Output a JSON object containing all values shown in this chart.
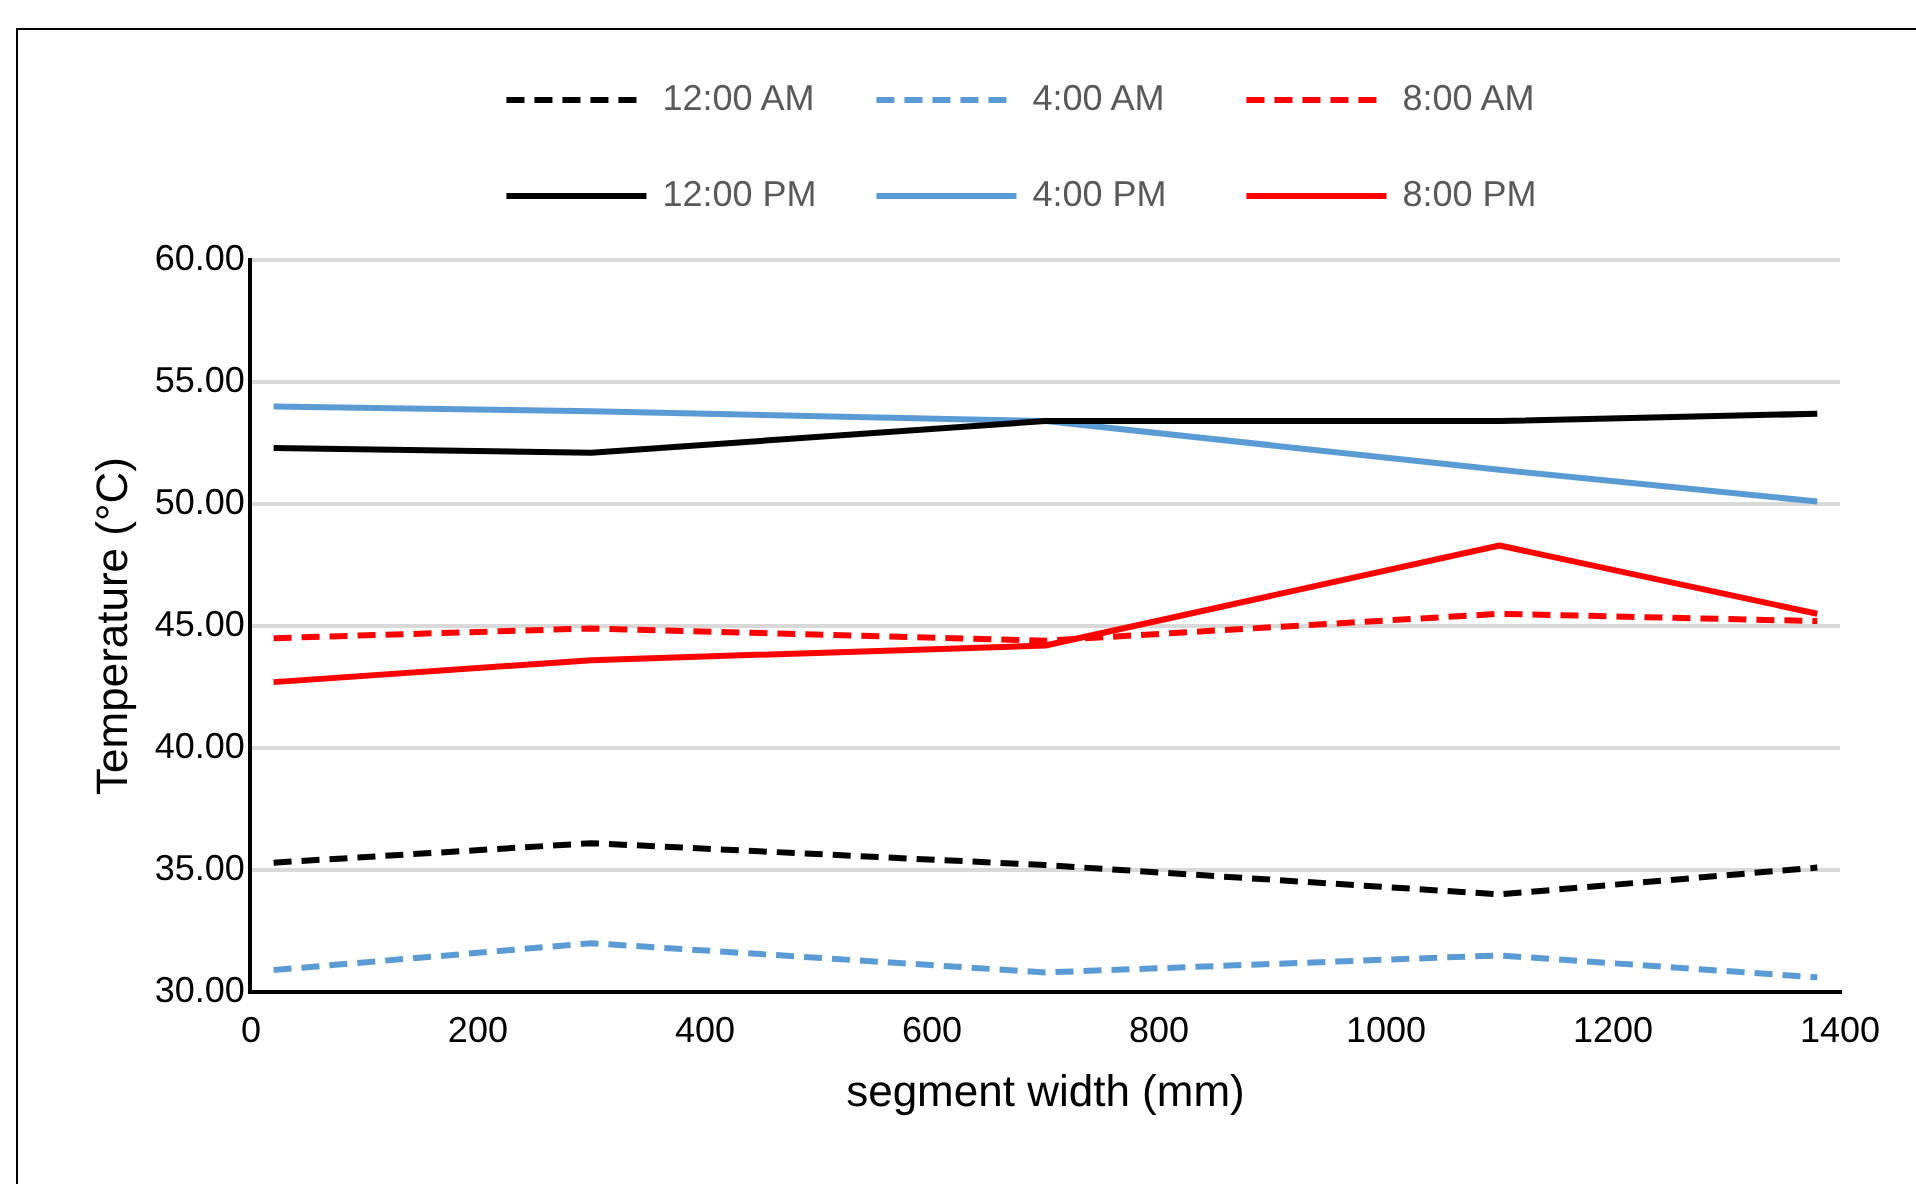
{
  "chart_data": {
    "type": "line",
    "xlabel": "segment width (mm)",
    "ylabel": "Temperature (°C)",
    "x": [
      20,
      300,
      700,
      1100,
      1380
    ],
    "xlim": [
      0,
      1400
    ],
    "xticks": [
      0,
      200,
      400,
      600,
      800,
      1000,
      1200,
      1400
    ],
    "ylim": [
      30,
      60
    ],
    "yticks": [
      {
        "value": 30,
        "label": "30.00"
      },
      {
        "value": 35,
        "label": "35.00"
      },
      {
        "value": 40,
        "label": "40.00"
      },
      {
        "value": 45,
        "label": "45.00"
      },
      {
        "value": 50,
        "label": "50.00"
      },
      {
        "value": 55,
        "label": "55.00"
      },
      {
        "value": 60,
        "label": "60.00"
      }
    ],
    "grid": "y",
    "legend": "top",
    "marker": "none",
    "series": [
      {
        "name": "12:00 AM",
        "color": "#000000",
        "line_style": "dashed",
        "values": [
          35.3,
          36.1,
          35.2,
          34.0,
          35.1
        ]
      },
      {
        "name": "4:00 AM",
        "color": "#5b9bd5",
        "line_style": "dashed",
        "values": [
          30.9,
          32.0,
          30.8,
          31.5,
          30.6
        ]
      },
      {
        "name": "8:00 AM",
        "color": "#ff0000",
        "line_style": "dashed",
        "values": [
          44.5,
          44.9,
          44.4,
          45.5,
          45.2
        ]
      },
      {
        "name": "12:00 PM",
        "color": "#000000",
        "line_style": "solid",
        "values": [
          52.3,
          52.1,
          53.4,
          53.4,
          53.7
        ]
      },
      {
        "name": "4:00 PM",
        "color": "#5b9bd5",
        "line_style": "solid",
        "values": [
          54.0,
          53.8,
          53.4,
          51.4,
          50.1
        ]
      },
      {
        "name": "8:00 PM",
        "color": "#ff0000",
        "line_style": "solid",
        "values": [
          42.7,
          43.6,
          44.2,
          48.3,
          45.5
        ]
      }
    ]
  }
}
